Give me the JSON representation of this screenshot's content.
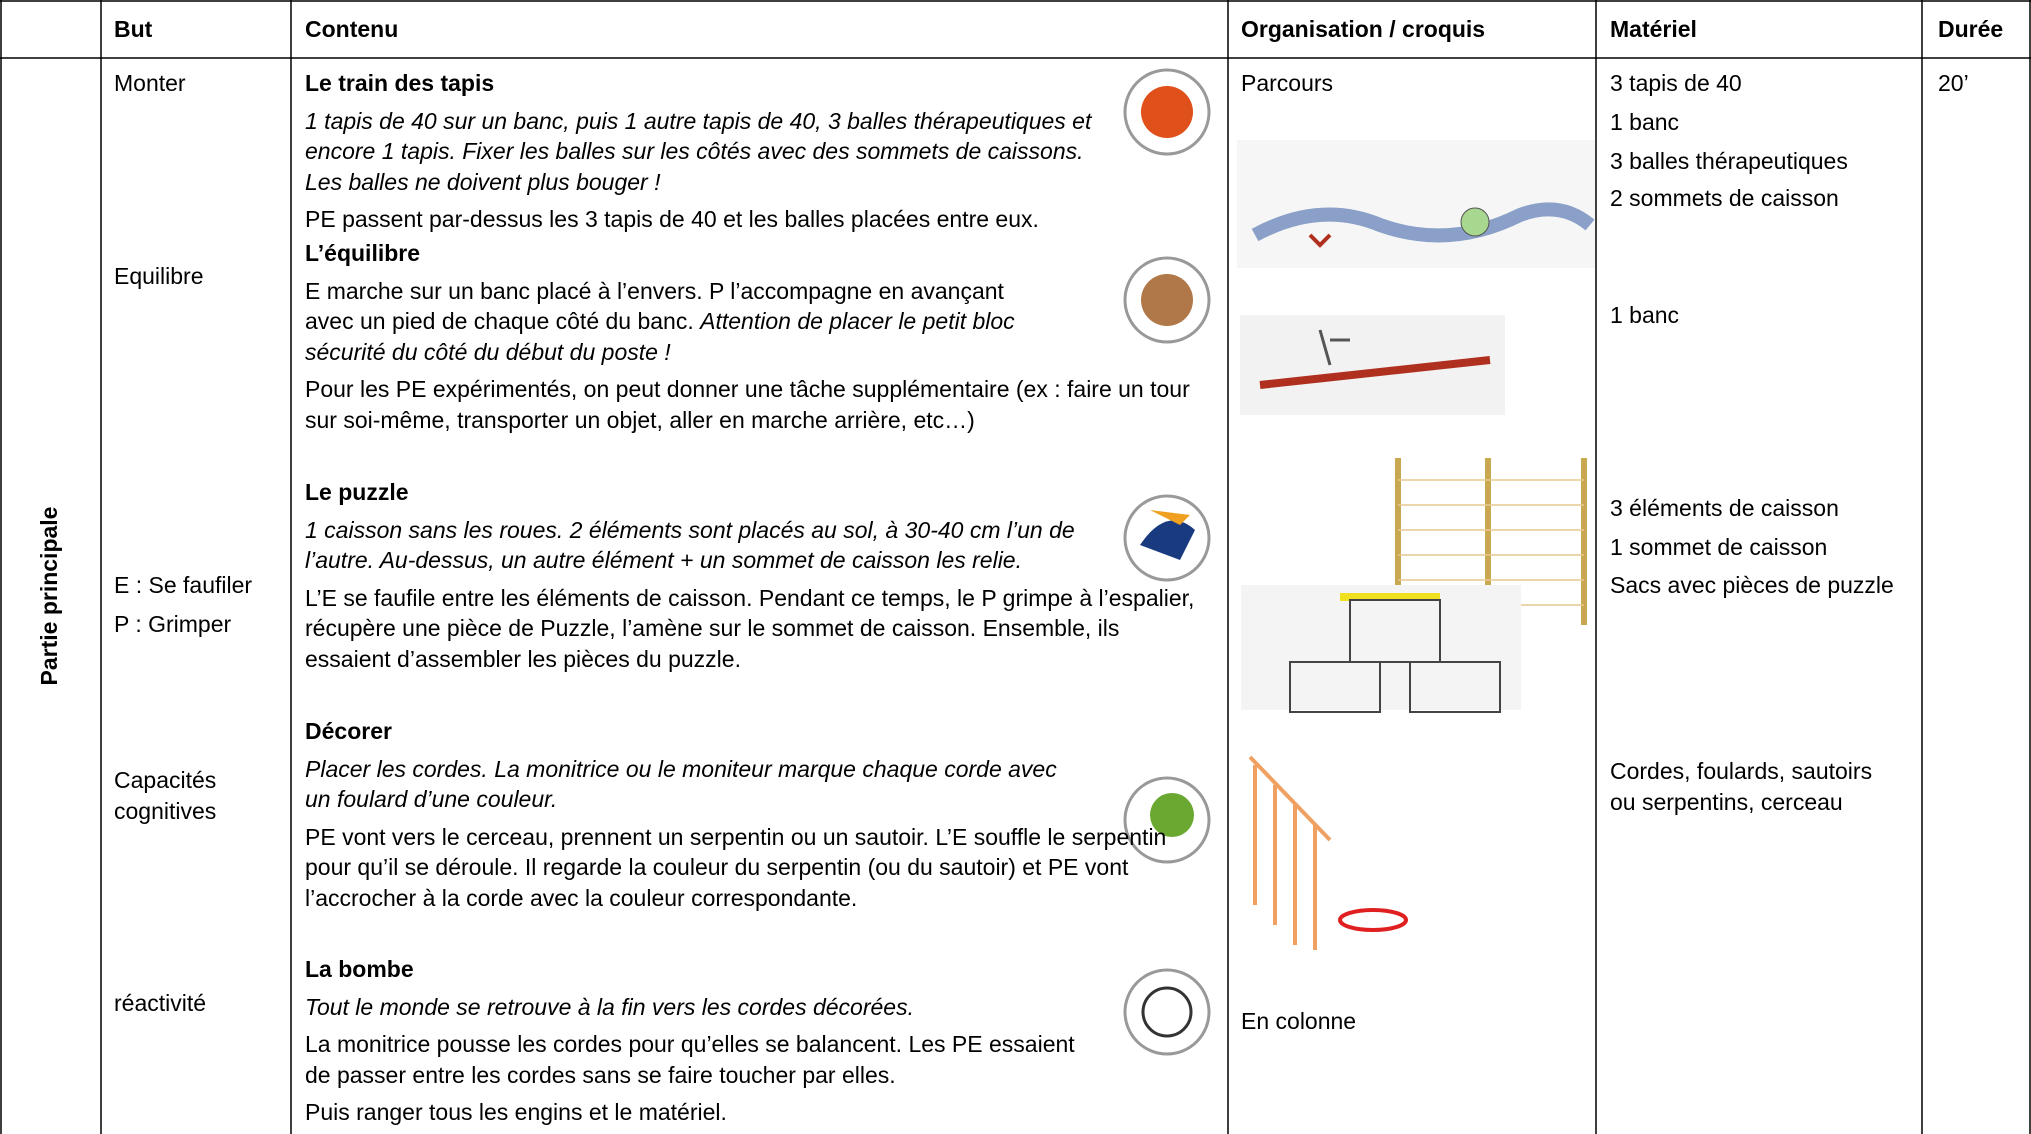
{
  "header": {
    "but": "But",
    "contenu": "Contenu",
    "organisation": "Organisation / croquis",
    "materiel": "Matériel",
    "duree": "Durée"
  },
  "section": "Partie principale",
  "but": [
    "Monter",
    "Equilibre",
    "E : Se faufiler",
    "P : Grimper",
    "Capacités cognitives",
    "réactivité"
  ],
  "contenu": [
    {
      "title": "Le train des tapis",
      "paragraphs": [
        [
          {
            "em": "1 tapis de 40 sur un banc, puis 1 autre tapis de 40, 3 balles thérapeutiques et encore 1 tapis. Fixer les balles sur les côtés avec des sommets de caissons. Les balles ne doivent plus bouger !"
          }
        ],
        [
          {
            "text": "PE passent par-dessus les 3 tapis de 40 et les balles placées entre eux."
          }
        ]
      ]
    },
    {
      "title": "L’équilibre",
      "paragraphs": [
        [
          {
            "text": "E marche sur un banc placé à l’envers. P l’accompagne en avançant avec un pied de chaque côté du banc. "
          },
          {
            "em": "Attention de placer le petit bloc sécurité du côté du début du poste !"
          }
        ],
        [
          {
            "text": "Pour les PE expérimentés, on peut donner une tâche supplémentaire (ex : faire un tour sur soi-même, transporter un objet, aller en marche arrière, etc…)"
          }
        ]
      ]
    },
    {
      "title": "Le puzzle",
      "paragraphs": [
        [
          {
            "em": "1 caisson sans les roues. 2 éléments sont placés au sol, à 30-40 cm l’un de l’autre. Au-dessus, un autre élément + un sommet de caisson les relie."
          }
        ],
        [
          {
            "text": "L’E se faufile entre les éléments de caisson. Pendant ce temps, le P grimpe à l’espalier, récupère une pièce de Puzzle, l’amène sur le sommet de caisson. Ensemble, ils essaient d’assembler les pièces du puzzle."
          }
        ]
      ]
    },
    {
      "title": "Décorer",
      "paragraphs": [
        [
          {
            "em": "Placer les cordes. La monitrice ou le moniteur marque chaque corde avec un foulard d’une couleur."
          }
        ],
        [
          {
            "text": "PE vont vers le cerceau, prennent un serpentin ou un sautoir. L’E souffle le serpentin pour qu’il se déroule. Il regarde la couleur du serpentin (ou du sautoir) et PE vont l’accrocher à la corde avec la couleur correspondante."
          }
        ]
      ]
    },
    {
      "title": "La bombe",
      "paragraphs": [
        [
          {
            "em": "Tout le monde se retrouve à la fin vers les cordes décorées."
          }
        ],
        [
          {
            "text": "La monitrice pousse les cordes pour qu’elles se balancent. Les PE essaient de passer entre les cordes sans se faire toucher par elles."
          }
        ],
        [
          {
            "text": "Puis ranger tous les engins et le matériel."
          }
        ]
      ]
    }
  ],
  "organisation": [
    "Parcours",
    "En colonne"
  ],
  "materiel": [
    "3 tapis de 40",
    "1 banc",
    "3 balles thérapeutiques",
    "2 sommets de caisson",
    "1 banc",
    "3 éléments de caisson",
    "1 sommet de caisson",
    "Sacs avec pièces de puzzle",
    "Cordes, foulards, sautoirs ou serpentins, cerceau"
  ],
  "duree": "20’"
}
